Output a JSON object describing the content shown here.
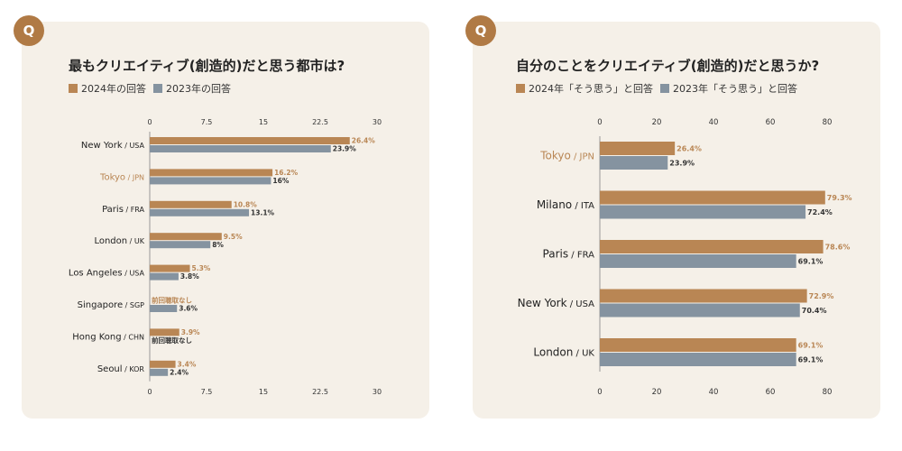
{
  "colors": {
    "series2024": "#b98654",
    "series2023": "#8593a0",
    "highlight": "#b98654",
    "badge": "#b07a45"
  },
  "panels": [
    {
      "badge": "Q",
      "title": "最もクリエイティブ(創造的)だと思う都市は?",
      "legend": [
        "2024年の回答",
        "2023年の回答"
      ]
    },
    {
      "badge": "Q",
      "title": "自分のことをクリエイティブ(創造的)だと思うか?",
      "legend": [
        "2024年「そう思う」と回答",
        "2023年「そう思う」と回答"
      ]
    }
  ],
  "chart_data": [
    {
      "type": "bar",
      "orientation": "horizontal",
      "title": "最もクリエイティブ(創造的)だと思う都市は?",
      "xlim": [
        0,
        30
      ],
      "ticks": [
        "0",
        "7.5",
        "15",
        "22.5",
        "30"
      ],
      "tick_values": [
        0,
        7.5,
        15,
        22.5,
        30
      ],
      "highlight_index": 1,
      "categories": [
        {
          "city": "New York",
          "country": "USA"
        },
        {
          "city": "Tokyo",
          "country": "JPN"
        },
        {
          "city": "Paris",
          "country": "FRA"
        },
        {
          "city": "London",
          "country": "UK"
        },
        {
          "city": "Los Angeles",
          "country": "USA"
        },
        {
          "city": "Singapore",
          "country": "SGP"
        },
        {
          "city": "Hong Kong",
          "country": "CHN"
        },
        {
          "city": "Seoul",
          "country": "KOR"
        }
      ],
      "series": [
        {
          "name": "2024年の回答",
          "values": [
            26.4,
            16.2,
            10.8,
            9.5,
            5.3,
            null,
            3.9,
            3.4
          ],
          "labels": [
            "26.4%",
            "16.2%",
            "10.8%",
            "9.5%",
            "5.3%",
            "前回聴取なし",
            "3.9%",
            "3.4%"
          ]
        },
        {
          "name": "2023年の回答",
          "values": [
            23.9,
            16,
            13.1,
            8,
            3.8,
            3.6,
            null,
            2.4
          ],
          "labels": [
            "23.9%",
            "16%",
            "13.1%",
            "8%",
            "3.8%",
            "3.6%",
            "前回聴取なし",
            "2.4%"
          ]
        }
      ]
    },
    {
      "type": "bar",
      "orientation": "horizontal",
      "title": "自分のことをクリエイティブ(創造的)だと思うか?",
      "xlim": [
        0,
        80
      ],
      "ticks": [
        "0",
        "20",
        "40",
        "60",
        "80"
      ],
      "tick_values": [
        0,
        20,
        40,
        60,
        80
      ],
      "highlight_index": 0,
      "categories": [
        {
          "city": "Tokyo",
          "country": "JPN"
        },
        {
          "city": "Milano",
          "country": "ITA"
        },
        {
          "city": "Paris",
          "country": "FRA"
        },
        {
          "city": "New York",
          "country": "USA"
        },
        {
          "city": "London",
          "country": "UK"
        }
      ],
      "series": [
        {
          "name": "2024年「そう思う」と回答",
          "values": [
            26.4,
            79.3,
            78.6,
            72.9,
            69.1
          ],
          "labels": [
            "26.4%",
            "79.3%",
            "78.6%",
            "72.9%",
            "69.1%"
          ]
        },
        {
          "name": "2023年「そう思う」と回答",
          "values": [
            23.9,
            72.4,
            69.1,
            70.4,
            69.1
          ],
          "labels": [
            "23.9%",
            "72.4%",
            "69.1%",
            "70.4%",
            "69.1%"
          ]
        }
      ]
    }
  ]
}
